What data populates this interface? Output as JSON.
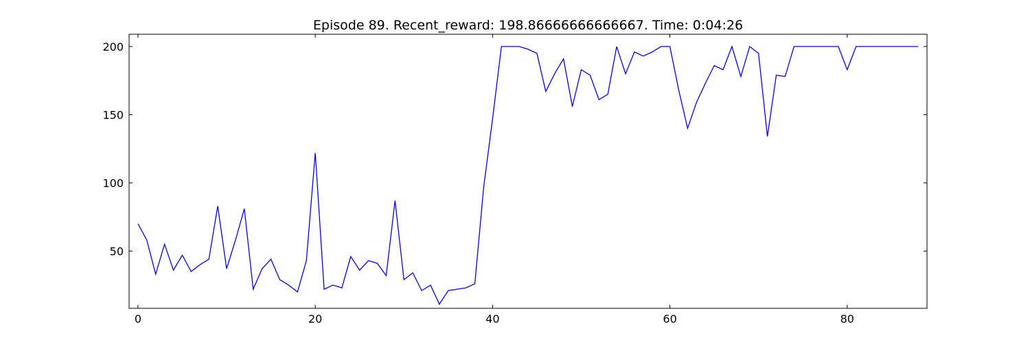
{
  "chart_data": {
    "type": "line",
    "title": "Episode 89. Recent_reward: 198.86666666666667. Time: 0:04:26",
    "xlabel": "",
    "ylabel": "",
    "xlim": [
      -1,
      89
    ],
    "ylim": [
      8,
      209
    ],
    "xticks": [
      0,
      20,
      40,
      60,
      80
    ],
    "yticks": [
      50,
      100,
      150,
      200
    ],
    "grid": false,
    "line_color": "#0000ff",
    "series": [
      {
        "x": [
          0,
          1,
          2,
          3,
          4,
          5,
          6,
          7,
          8,
          9,
          10,
          11,
          12,
          13,
          14,
          15,
          16,
          17,
          18,
          19,
          20,
          21,
          22,
          23,
          24,
          25,
          26,
          27,
          28,
          29,
          30,
          31,
          32,
          33,
          34,
          35,
          36,
          37,
          38,
          39,
          40,
          41,
          42,
          43,
          44,
          45,
          46,
          47,
          48,
          49,
          50,
          51,
          52,
          53,
          54,
          55,
          56,
          57,
          58,
          59,
          60,
          61,
          62,
          63,
          64,
          65,
          66,
          67,
          68,
          69,
          70,
          71,
          72,
          73,
          74,
          75,
          76,
          77,
          78,
          79,
          80,
          81,
          82,
          83,
          84,
          85,
          86,
          87,
          88
        ],
        "values": [
          70,
          58,
          33,
          55,
          36,
          47,
          35,
          40,
          44,
          83,
          37,
          58,
          81,
          22,
          37,
          44,
          29,
          25,
          20,
          43,
          122,
          22,
          25,
          23,
          46,
          36,
          43,
          41,
          32,
          87,
          29,
          34,
          21,
          25,
          11,
          21,
          22,
          23,
          26,
          97,
          147,
          200,
          200,
          200,
          198,
          195,
          167,
          180,
          191,
          156,
          183,
          179,
          161,
          165,
          200,
          180,
          196,
          193,
          196,
          200,
          200,
          168,
          140,
          159,
          173,
          186,
          183,
          200,
          178,
          200,
          195,
          134,
          179,
          178,
          200,
          200,
          200,
          200,
          200,
          200,
          183,
          200,
          200,
          200,
          200,
          200,
          200,
          200,
          200
        ]
      }
    ]
  }
}
